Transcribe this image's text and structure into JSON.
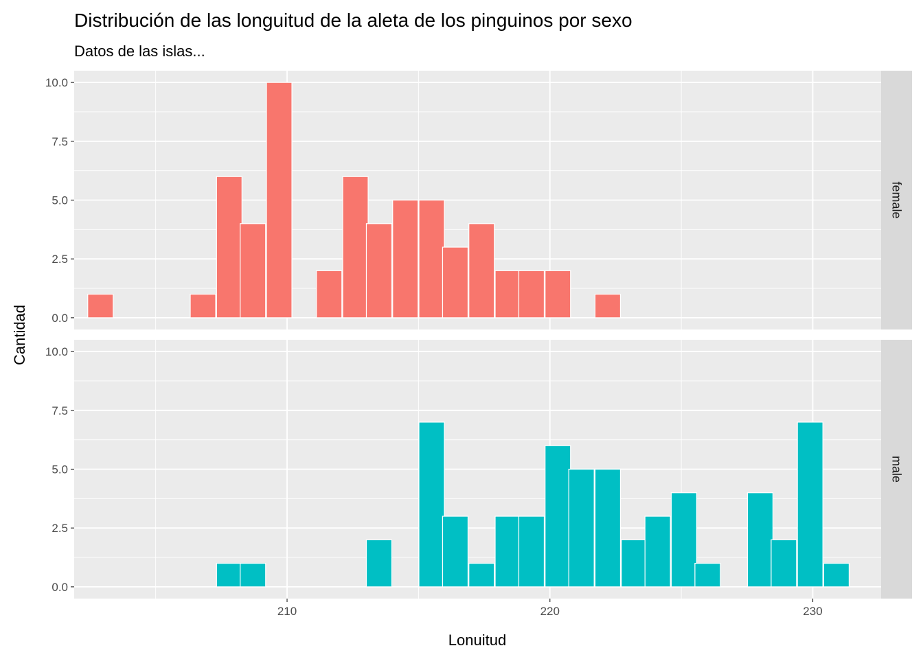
{
  "chart_data": {
    "type": "bar",
    "title": "Distribución de las longuitud de la aleta de los pinguinos por sexo",
    "subtitle": "Datos de las islas...",
    "xlabel": "Lonuitud",
    "ylabel": "Cantidad",
    "xlim": [
      201.9,
      232.6
    ],
    "ylim": [
      -0.5,
      10.5
    ],
    "x_ticks": [
      210,
      220,
      230
    ],
    "y_ticks": [
      0.0,
      2.5,
      5.0,
      7.5,
      10.0
    ],
    "x_tick_labels": [
      "210",
      "220",
      "230"
    ],
    "y_tick_labels": [
      "0.0",
      "2.5",
      "5.0",
      "7.5",
      "10.0"
    ],
    "bin_width": 0.967,
    "grid": true,
    "legend": "none",
    "facets": [
      {
        "name": "female",
        "color": "#F8766D",
        "bins": [
          {
            "x": 202.9,
            "count": 1
          },
          {
            "x": 206.8,
            "count": 1
          },
          {
            "x": 207.8,
            "count": 6
          },
          {
            "x": 208.7,
            "count": 4
          },
          {
            "x": 209.7,
            "count": 10
          },
          {
            "x": 211.6,
            "count": 2
          },
          {
            "x": 212.6,
            "count": 6
          },
          {
            "x": 213.5,
            "count": 4
          },
          {
            "x": 214.5,
            "count": 5
          },
          {
            "x": 215.5,
            "count": 5
          },
          {
            "x": 216.4,
            "count": 3
          },
          {
            "x": 217.4,
            "count": 4
          },
          {
            "x": 218.4,
            "count": 2
          },
          {
            "x": 219.3,
            "count": 2
          },
          {
            "x": 220.3,
            "count": 2
          },
          {
            "x": 222.2,
            "count": 1
          }
        ]
      },
      {
        "name": "male",
        "color": "#00BFC4",
        "bins": [
          {
            "x": 207.8,
            "count": 1
          },
          {
            "x": 208.7,
            "count": 1
          },
          {
            "x": 213.5,
            "count": 2
          },
          {
            "x": 215.5,
            "count": 7
          },
          {
            "x": 216.4,
            "count": 3
          },
          {
            "x": 217.4,
            "count": 1
          },
          {
            "x": 218.4,
            "count": 3
          },
          {
            "x": 219.3,
            "count": 3
          },
          {
            "x": 220.3,
            "count": 6
          },
          {
            "x": 221.2,
            "count": 5
          },
          {
            "x": 222.2,
            "count": 5
          },
          {
            "x": 223.2,
            "count": 2
          },
          {
            "x": 224.1,
            "count": 3
          },
          {
            "x": 225.1,
            "count": 4
          },
          {
            "x": 226.0,
            "count": 1
          },
          {
            "x": 228.0,
            "count": 4
          },
          {
            "x": 228.9,
            "count": 2
          },
          {
            "x": 229.9,
            "count": 7
          },
          {
            "x": 230.9,
            "count": 1
          }
        ]
      }
    ]
  }
}
